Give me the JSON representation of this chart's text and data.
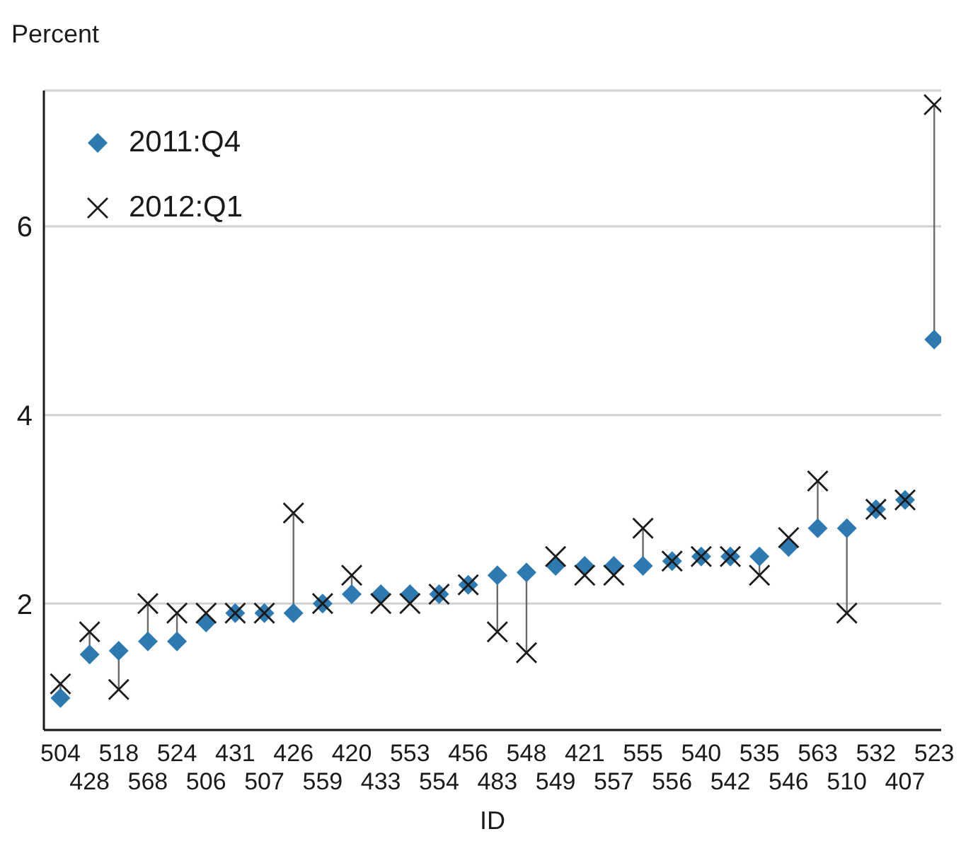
{
  "chart_data": {
    "type": "scatter",
    "ylabel": "Percent",
    "xlabel": "ID",
    "categories": [
      "504",
      "428",
      "518",
      "568",
      "524",
      "506",
      "431",
      "507",
      "426",
      "559",
      "420",
      "433",
      "553",
      "554",
      "456",
      "483",
      "548",
      "549",
      "421",
      "557",
      "555",
      "556",
      "540",
      "542",
      "535",
      "546",
      "563",
      "510",
      "532",
      "407",
      "523"
    ],
    "series": [
      {
        "name": "2011:Q4",
        "color": "#2e79b0",
        "marker": "diamond",
        "values": [
          1.0,
          1.46,
          1.5,
          1.6,
          1.6,
          1.8,
          1.9,
          1.9,
          1.9,
          2.0,
          2.1,
          2.1,
          2.1,
          2.1,
          2.2,
          2.3,
          2.33,
          2.4,
          2.4,
          2.4,
          2.4,
          2.45,
          2.5,
          2.5,
          2.5,
          2.6,
          2.8,
          2.8,
          3.0,
          3.1,
          4.8
        ]
      },
      {
        "name": "2012:Q1",
        "color": "#1a1a1a",
        "marker": "cross",
        "values": [
          1.15,
          1.7,
          1.09,
          2.0,
          1.9,
          1.9,
          1.9,
          1.9,
          2.96,
          2.0,
          2.3,
          2.0,
          2.0,
          2.1,
          2.2,
          1.7,
          1.48,
          2.5,
          2.3,
          2.3,
          2.8,
          2.45,
          2.5,
          2.5,
          2.3,
          2.7,
          3.3,
          1.9,
          3.0,
          3.1,
          7.29
        ]
      }
    ],
    "ylim": [
      0.66,
      7.44
    ],
    "yticks": [
      2,
      4,
      6
    ],
    "grid": "y",
    "legend": "top left"
  }
}
